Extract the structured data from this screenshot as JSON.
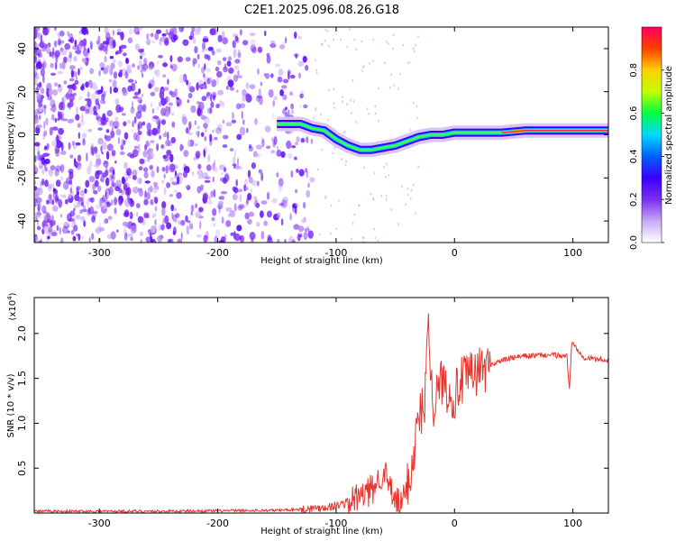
{
  "title": "C2E1.2025.096.08.26.G18",
  "chart_data": [
    {
      "type": "heatmap",
      "xlabel": "Height of straight line (km)",
      "ylabel": "Frequency (Hz)",
      "xlim": [
        -355,
        130
      ],
      "ylim": [
        -50,
        50
      ],
      "xticks": [
        -300,
        -200,
        -100,
        0,
        100
      ],
      "yticks": [
        -40,
        -20,
        0,
        20,
        40
      ],
      "colorbar": {
        "label": "Normalized spectral amplitude",
        "range": [
          0,
          1
        ],
        "ticks": [
          "0.0",
          "0.2",
          "0.4",
          "0.6",
          "0.8"
        ],
        "colormap": [
          "#ffffff",
          "#c8a8f8",
          "#7a2ef0",
          "#3a00ff",
          "#0060ff",
          "#00d8ff",
          "#00ff40",
          "#c0ff00",
          "#ffd000",
          "#ff4000",
          "#ff0060"
        ]
      },
      "ridge": {
        "x": [
          -150,
          -140,
          -130,
          -120,
          -110,
          -100,
          -90,
          -80,
          -70,
          -60,
          -50,
          -40,
          -30,
          -20,
          -10,
          0,
          20,
          40,
          60,
          80,
          100,
          120,
          130
        ],
        "y": [
          5,
          5,
          5,
          3,
          2,
          -2,
          -5,
          -7,
          -7,
          -6,
          -5,
          -3,
          -1,
          0,
          0,
          1,
          1,
          1,
          2,
          2,
          2,
          2,
          2
        ]
      }
    },
    {
      "type": "line",
      "xlabel": "Height of straight line (km)",
      "ylabel": "SNR (10 * v/v)",
      "multiplier": "(x10",
      "multiplier_exp": "4",
      "multiplier_close": ")",
      "xlim": [
        -355,
        130
      ],
      "ylim": [
        0,
        2.4
      ],
      "xticks": [
        -300,
        -200,
        -100,
        0,
        100
      ],
      "yticks": [
        "0.5",
        "1.0",
        "1.5",
        "2.0"
      ],
      "color": "#e8352e",
      "series": [
        {
          "x": [
            -355,
            -250,
            -150,
            -120,
            -100,
            -90,
            -80,
            -70,
            -65,
            -60,
            -55,
            -50,
            -45,
            -40,
            -35,
            -30,
            -25,
            -22,
            -20,
            -18,
            -15,
            -10,
            -5,
            0,
            5,
            10,
            20,
            30,
            40,
            50,
            60,
            80,
            95,
            97,
            99,
            110,
            130
          ],
          "y": [
            0.02,
            0.02,
            0.03,
            0.05,
            0.08,
            0.12,
            0.18,
            0.25,
            0.35,
            0.48,
            0.28,
            0.12,
            0.08,
            0.3,
            0.6,
            1.1,
            1.2,
            2.4,
            1.5,
            1.2,
            1.3,
            1.5,
            1.35,
            1.3,
            1.45,
            1.5,
            1.58,
            1.65,
            1.7,
            1.73,
            1.75,
            1.76,
            1.75,
            1.35,
            1.9,
            1.73,
            1.7
          ]
        }
      ]
    }
  ]
}
